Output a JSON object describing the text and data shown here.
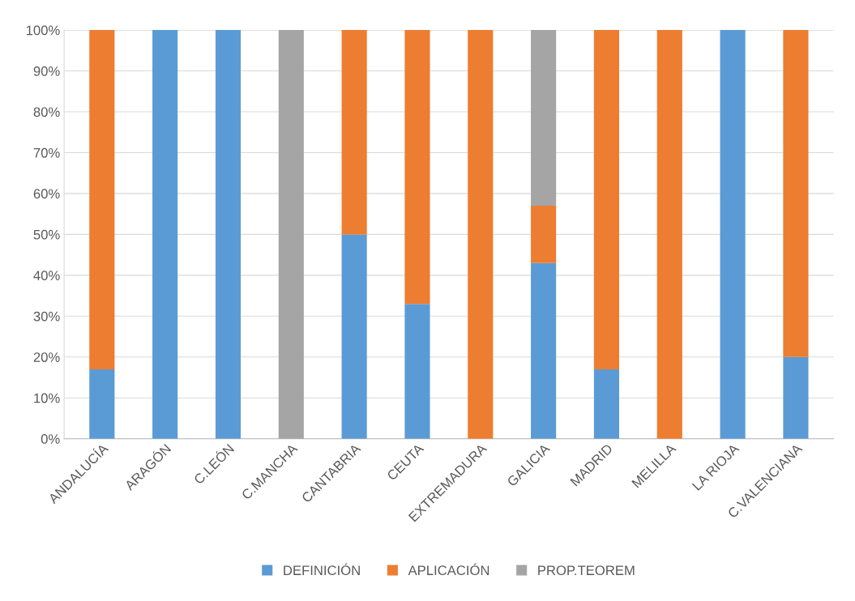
{
  "chart_data": {
    "type": "bar",
    "stacked": true,
    "categories": [
      "ANDALUCÍA",
      "ARAGÓN",
      "C.LEÓN",
      "C.MANCHA",
      "CANTABRIA",
      "CEUTA",
      "EXTREMADURA",
      "GALICIA",
      "MADRID",
      "MELILLA",
      "LA RIOJA",
      "C.VALENCIANA"
    ],
    "series": [
      {
        "name": "DEFINICIÓN",
        "color": "#5b9bd5",
        "values": [
          17,
          100,
          100,
          0,
          50,
          33,
          0,
          43,
          17,
          0,
          100,
          20
        ]
      },
      {
        "name": "APLICACIÓN",
        "color": "#ed7d31",
        "values": [
          83,
          0,
          0,
          0,
          50,
          67,
          100,
          14,
          83,
          100,
          0,
          80
        ]
      },
      {
        "name": "PROP.TEOREM",
        "color": "#a5a5a5",
        "values": [
          0,
          0,
          0,
          100,
          0,
          0,
          0,
          43,
          0,
          0,
          0,
          0
        ]
      }
    ],
    "ylim": [
      0,
      100
    ],
    "yticks": [
      {
        "value": 0,
        "label": "0%"
      },
      {
        "value": 10,
        "label": "10%"
      },
      {
        "value": 20,
        "label": "20%"
      },
      {
        "value": 30,
        "label": "30%"
      },
      {
        "value": 40,
        "label": "40%"
      },
      {
        "value": 50,
        "label": "50%"
      },
      {
        "value": 60,
        "label": "60%"
      },
      {
        "value": 70,
        "label": "70%"
      },
      {
        "value": 80,
        "label": "80%"
      },
      {
        "value": 90,
        "label": "90%"
      },
      {
        "value": 100,
        "label": "100%"
      }
    ],
    "grid": "y",
    "legend": "bottom"
  }
}
